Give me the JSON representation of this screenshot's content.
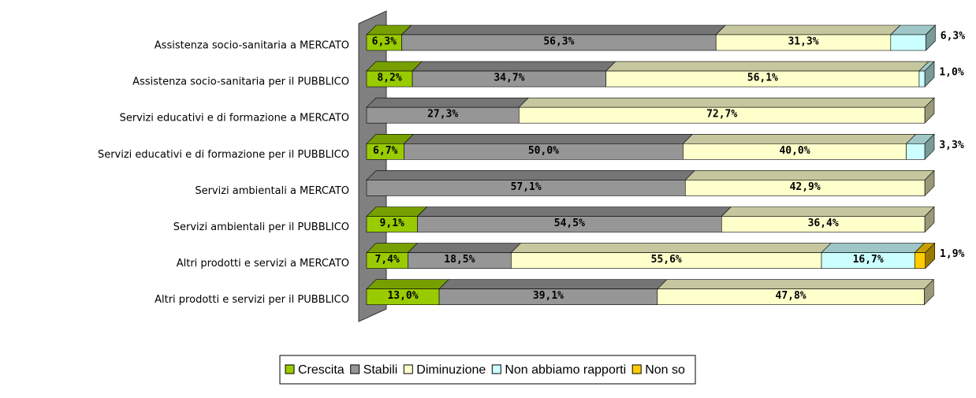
{
  "chart_data": {
    "type": "stacked-bar-horizontal",
    "categories": [
      "Assistenza socio-sanitaria a MERCATO",
      "Assistenza socio-sanitaria per il PUBBLICO",
      "Servizi educativi e di formazione a MERCATO",
      "Servizi educativi e di formazione per il PUBBLICO",
      "Servizi ambientali a MERCATO",
      "Servizi ambientali per il PUBBLICO",
      "Altri prodotti e servizi a MERCATO",
      "Altri prodotti e servizi per il PUBBLICO"
    ],
    "xlim": [
      0,
      100
    ],
    "series": [
      {
        "name": "Crescita",
        "color": "#99cc00",
        "values": [
          6.3,
          8.2,
          null,
          6.7,
          null,
          9.1,
          7.4,
          13.0
        ],
        "value_labels": [
          "6,3%",
          "8,2%",
          null,
          "6,7%",
          null,
          "9,1%",
          "7,4%",
          "13,0%"
        ]
      },
      {
        "name": "Stabili",
        "color": "#969696",
        "values": [
          56.3,
          34.7,
          27.3,
          50.0,
          57.1,
          54.5,
          18.5,
          39.1
        ],
        "value_labels": [
          "56,3%",
          "34,7%",
          "27,3%",
          "50,0%",
          "57,1%",
          "54,5%",
          "18,5%",
          "39,1%"
        ]
      },
      {
        "name": "Diminuzione",
        "color": "#ffffcc",
        "values": [
          31.3,
          56.1,
          72.7,
          40.0,
          42.9,
          36.4,
          55.6,
          47.8
        ],
        "value_labels": [
          "31,3%",
          "56,1%",
          "72,7%",
          "40,0%",
          "42,9%",
          "36,4%",
          "55,6%",
          "47,8%"
        ]
      },
      {
        "name": "Non abbiamo rapporti",
        "color": "#ccffff",
        "values": [
          6.3,
          1.0,
          null,
          3.3,
          null,
          null,
          16.7,
          null
        ],
        "value_labels": [
          "6,3%",
          "1,0%",
          null,
          "3,3%",
          null,
          null,
          "16,7%",
          null
        ]
      },
      {
        "name": "Non so",
        "color": "#ffcc00",
        "values": [
          null,
          null,
          null,
          null,
          null,
          null,
          1.9,
          null
        ],
        "value_labels": [
          null,
          null,
          null,
          null,
          null,
          null,
          "1,9%",
          null
        ]
      }
    ],
    "legend": "bottom"
  }
}
